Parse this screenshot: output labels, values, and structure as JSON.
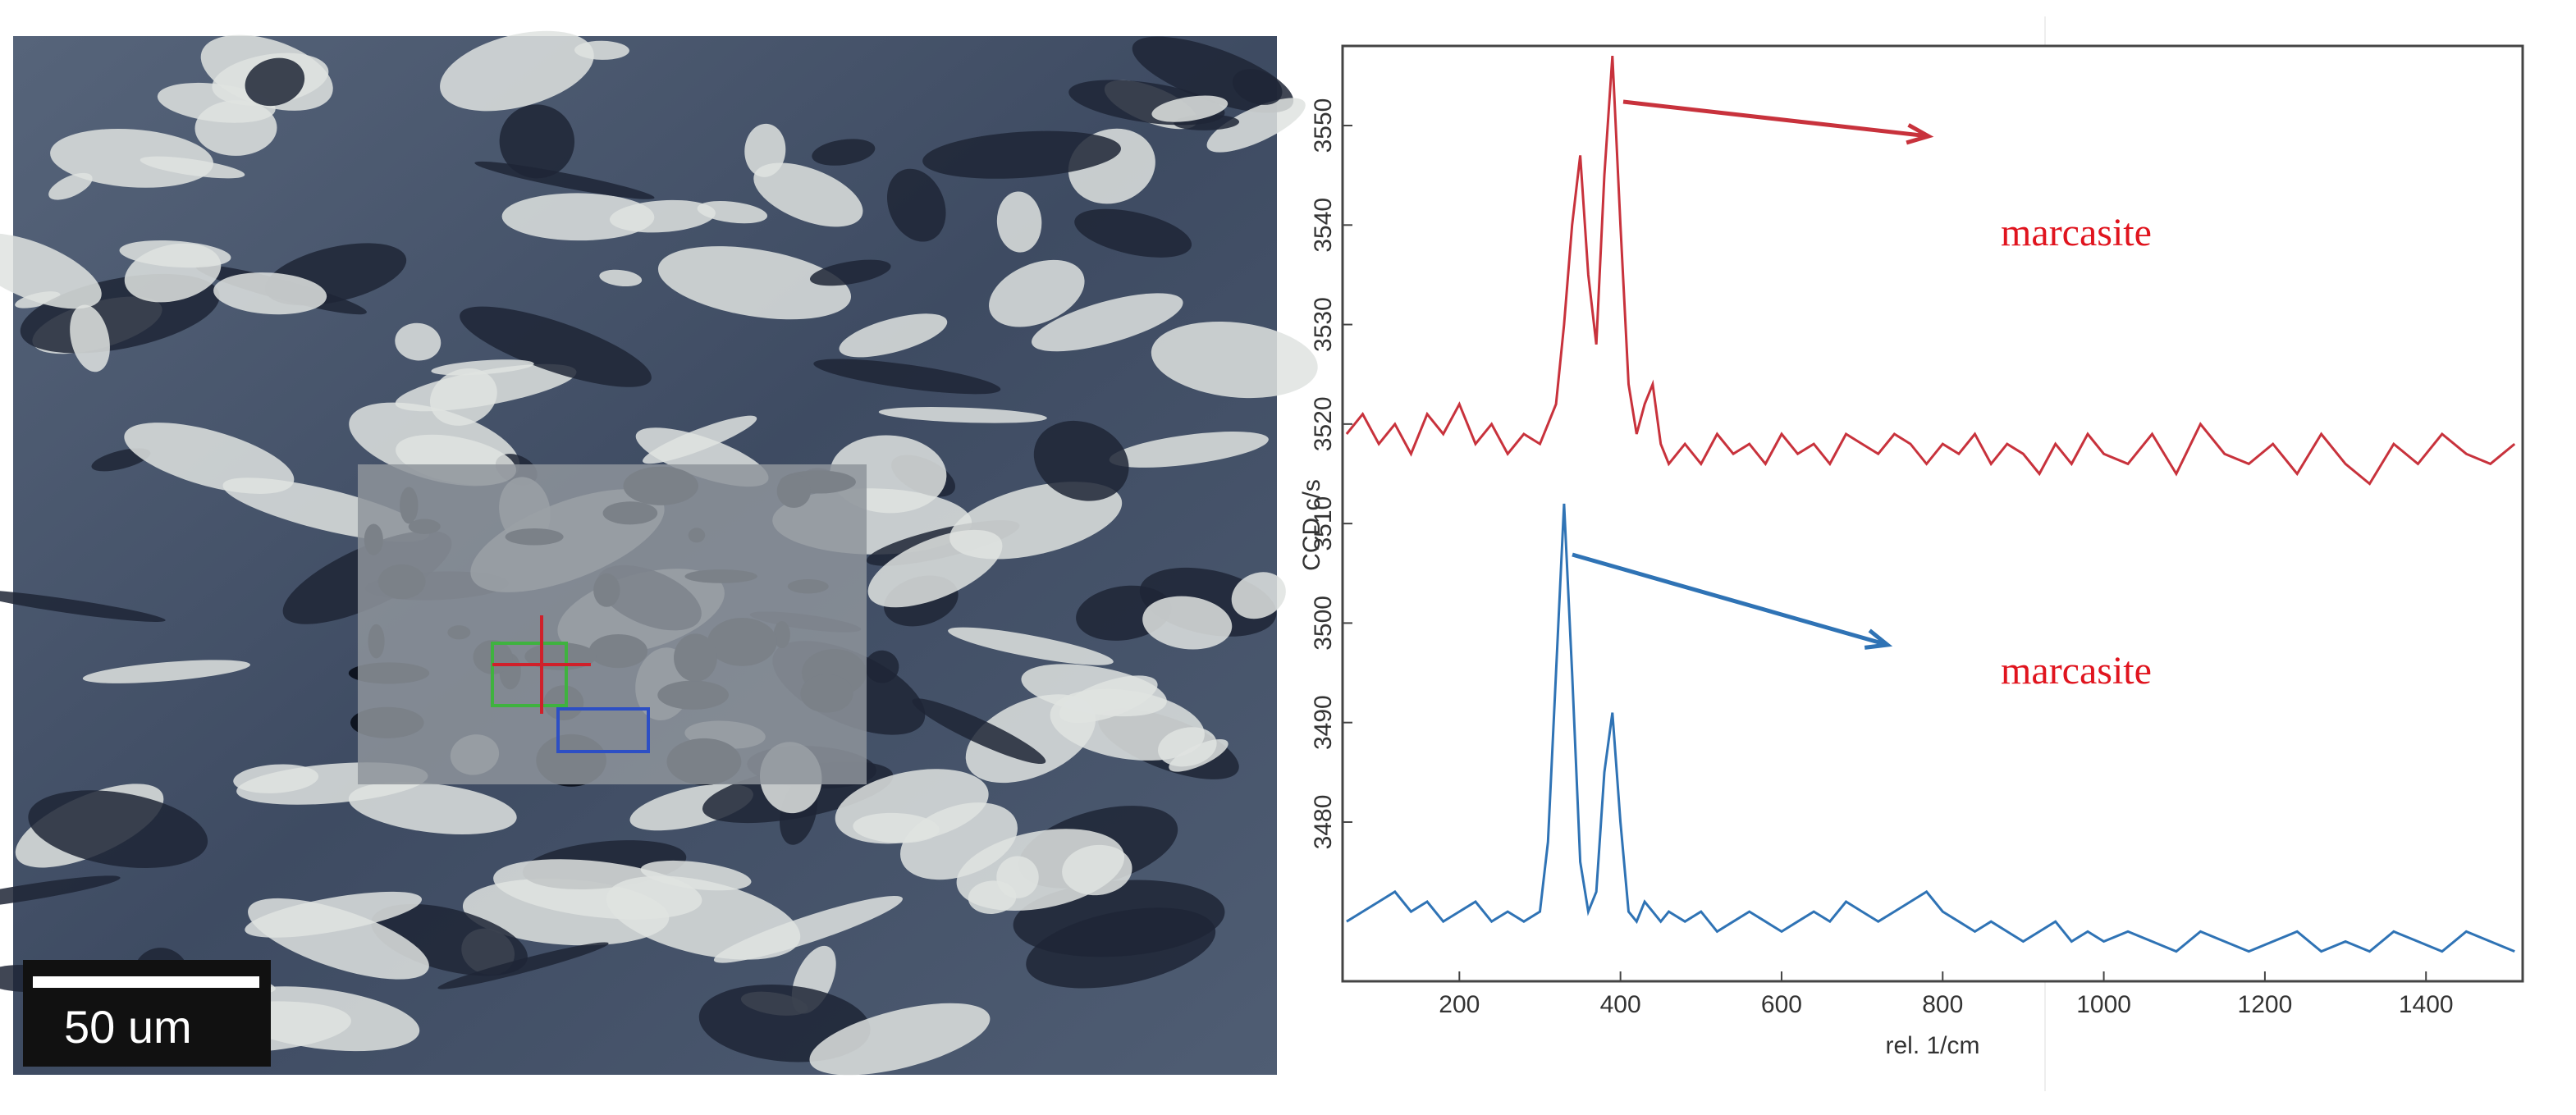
{
  "micrograph": {
    "scale_label": "50 um"
  },
  "chart_data": {
    "type": "line",
    "x_label": "rel. 1/cm",
    "y_label": "CCD c/s",
    "xlim": [
      55,
      1520
    ],
    "xticks": [
      200,
      400,
      600,
      800,
      1000,
      1200,
      1400
    ],
    "ylim": [
      3464,
      3558
    ],
    "yticks": [
      3480,
      3490,
      3500,
      3510,
      3520,
      3530,
      3540,
      3550
    ],
    "grid": false,
    "x": [
      60,
      80,
      100,
      120,
      140,
      160,
      180,
      200,
      220,
      240,
      260,
      280,
      300,
      310,
      320,
      330,
      340,
      350,
      360,
      370,
      380,
      390,
      400,
      410,
      420,
      430,
      440,
      450,
      460,
      480,
      500,
      520,
      540,
      560,
      580,
      600,
      620,
      640,
      660,
      680,
      700,
      720,
      740,
      760,
      780,
      800,
      820,
      840,
      860,
      880,
      900,
      920,
      940,
      960,
      980,
      1000,
      1030,
      1060,
      1090,
      1120,
      1150,
      1180,
      1210,
      1240,
      1270,
      1300,
      1330,
      1360,
      1390,
      1420,
      1450,
      1480,
      1510
    ],
    "series": [
      {
        "color": "#c8323c",
        "values": [
          3519,
          3521,
          3518,
          3520,
          3517,
          3521,
          3519,
          3522,
          3518,
          3520,
          3517,
          3519,
          3518,
          3520,
          3522,
          3530,
          3540,
          3547,
          3535,
          3528,
          3545,
          3557,
          3540,
          3524,
          3519,
          3522,
          3524,
          3518,
          3516,
          3518,
          3516,
          3519,
          3517,
          3518,
          3516,
          3519,
          3517,
          3518,
          3516,
          3519,
          3518,
          3517,
          3519,
          3518,
          3516,
          3518,
          3517,
          3519,
          3516,
          3518,
          3517,
          3515,
          3518,
          3516,
          3519,
          3517,
          3516,
          3519,
          3515,
          3520,
          3517,
          3516,
          3518,
          3515,
          3519,
          3516,
          3514,
          3518,
          3516,
          3519,
          3517,
          3516,
          3518
        ]
      },
      {
        "color": "#2f73b5",
        "values": [
          3470,
          3471,
          3472,
          3473,
          3471,
          3472,
          3470,
          3471,
          3472,
          3470,
          3471,
          3470,
          3471,
          3478,
          3495,
          3512,
          3495,
          3476,
          3471,
          3473,
          3485,
          3491,
          3480,
          3471,
          3470,
          3472,
          3471,
          3470,
          3471,
          3470,
          3471,
          3469,
          3470,
          3471,
          3470,
          3469,
          3470,
          3471,
          3470,
          3472,
          3471,
          3470,
          3471,
          3472,
          3473,
          3471,
          3470,
          3469,
          3470,
          3469,
          3468,
          3469,
          3470,
          3468,
          3469,
          3468,
          3469,
          3468,
          3467,
          3469,
          3468,
          3467,
          3468,
          3469,
          3467,
          3468,
          3467,
          3469,
          3468,
          3467,
          3469,
          3468,
          3467
        ]
      }
    ],
    "annotations": [
      {
        "text": "marcasite",
        "color": "#e0141e"
      },
      {
        "text": "marcasite",
        "color": "#e0141e"
      }
    ]
  }
}
